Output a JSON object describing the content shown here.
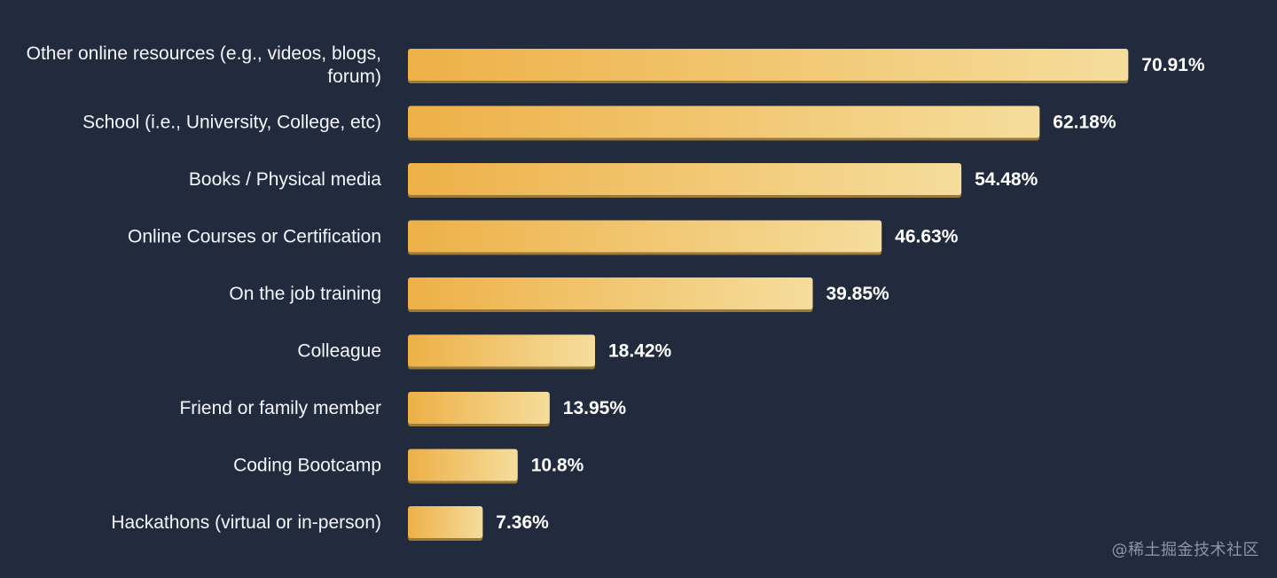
{
  "chart_data": {
    "type": "bar",
    "orientation": "horizontal",
    "categories": [
      [
        "Other online resources (e.g., videos, blogs,",
        "forum)"
      ],
      [
        "School (i.e., University, College, etc)"
      ],
      [
        "Books / Physical media"
      ],
      [
        "Online Courses or Certification"
      ],
      [
        "On the job training"
      ],
      [
        "Colleague"
      ],
      [
        "Friend or family member"
      ],
      [
        "Coding Bootcamp"
      ],
      [
        "Hackathons (virtual or in-person)"
      ]
    ],
    "values": [
      70.91,
      62.18,
      54.48,
      46.63,
      39.85,
      18.42,
      13.95,
      10.8,
      7.36
    ],
    "value_labels": [
      "70.91%",
      "62.18%",
      "54.48%",
      "46.63%",
      "39.85%",
      "18.42%",
      "13.95%",
      "10.8%",
      "7.36%"
    ],
    "unit": "%",
    "xlim": [
      0,
      100
    ],
    "title": "",
    "xlabel": "",
    "ylabel": "",
    "grid": false,
    "legend": "none"
  },
  "colors": {
    "background": "#222b3d",
    "bar_start": "#eeb047",
    "bar_end": "#f5dd9c",
    "bar_shadow": "#9a7a3c",
    "label_text": "#f4f6fb",
    "value_text": "#ffffff"
  },
  "watermark": "@稀土掘金技术社区"
}
